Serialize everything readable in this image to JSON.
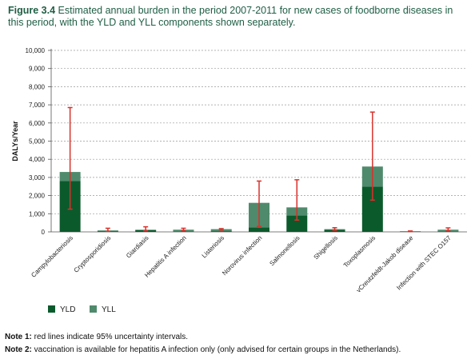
{
  "figure": {
    "label": "Figure 3.4",
    "caption": "Estimated annual burden in the period 2007-2011 for new cases of foodborne diseases in this period, with the YLD and YLL components shown separately."
  },
  "chart_data": {
    "type": "bar",
    "stacked": true,
    "ylabel": "DALYs/Year",
    "xlabel": "",
    "ylim": [
      0,
      10000
    ],
    "yticks": [
      "0",
      "1,000",
      "2,000",
      "3,000",
      "4,000",
      "5,000",
      "6,000",
      "7,000",
      "8,000",
      "9,000",
      "10,000"
    ],
    "grid": "horizontal-dashed",
    "legend_position": "bottom-left",
    "categories": [
      "Campylobacteriosis",
      "Cryptosporidiosis",
      "Giardiasis",
      "Hepatitis A infection",
      "Listeriosis",
      "Norovirus infection",
      "Salmonellosis",
      "Shigellosis",
      "Toxoplasmosis",
      "vCreutzfeldt-Jakob disease",
      "Infection with STEC O157"
    ],
    "series": [
      {
        "name": "YLD",
        "color": "#0b5a2c",
        "values": [
          2800,
          40,
          90,
          30,
          40,
          250,
          900,
          120,
          2500,
          0,
          30
        ]
      },
      {
        "name": "YLL",
        "color": "#4f8a6c",
        "values": [
          500,
          40,
          30,
          90,
          110,
          1350,
          450,
          30,
          1100,
          40,
          90
        ]
      }
    ],
    "error_bars": {
      "color": "#d9312b",
      "low": [
        1250,
        30,
        60,
        60,
        100,
        300,
        650,
        90,
        1750,
        20,
        50
      ],
      "high": [
        6850,
        200,
        280,
        200,
        180,
        2800,
        2870,
        230,
        6600,
        50,
        220
      ]
    }
  },
  "notes": [
    {
      "label": "Note 1:",
      "text": " red lines indicate 95% uncertainty intervals."
    },
    {
      "label": "Note 2:",
      "text": " vaccination is available for hepatitis A infection only (only advised for certain groups in the Netherlands)."
    }
  ]
}
